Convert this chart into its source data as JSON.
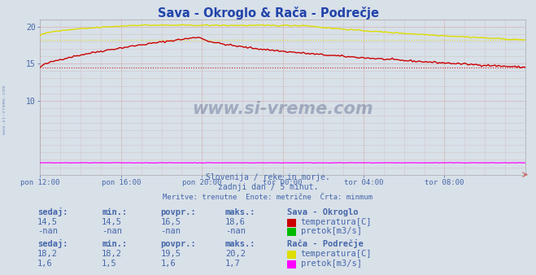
{
  "title": "Sava - Okroglo & Rača - Podrečje",
  "title_color": "#2244aa",
  "bg_color": "#d8e0e8",
  "plot_bg_color": "#d8e0e8",
  "grid_color_major": "#c8b8b8",
  "grid_color_minor": "#d0c8c8",
  "text_color": "#4466aa",
  "watermark_text": "www.si-vreme.com",
  "subtitle1": "Slovenija / reke in morje.",
  "subtitle2": "zadnji dan / 5 minut.",
  "subtitle3": "Meritve: trenutne  Enote: metrične  Črta: minmum",
  "xlim": [
    0,
    288
  ],
  "ylim": [
    0,
    21
  ],
  "yticks": [
    10,
    15,
    20
  ],
  "xtick_labels": [
    "pon 12:00",
    "pon 16:00",
    "pon 20:00",
    "tor 00:00",
    "tor 04:00",
    "tor 08:00"
  ],
  "xtick_positions": [
    0,
    48,
    96,
    144,
    192,
    240
  ],
  "sava_temp_color": "#cc0000",
  "raca_temp_color": "#dddd00",
  "raca_pretok_color": "#ff00ff",
  "sava_pretok_color": "#00bb00",
  "sava_temp_min": 14.5,
  "sava_temp_max": 18.6,
  "sava_temp_povpr": 16.5,
  "sava_temp_sedaj": 14.5,
  "raca_temp_min": 18.2,
  "raca_temp_max": 20.2,
  "raca_temp_povpr": 19.5,
  "raca_temp_sedaj": 18.2,
  "raca_pretok_min": 1.5,
  "raca_pretok_max": 1.7,
  "raca_pretok_povpr": 1.6,
  "raca_pretok_sedaj": 1.6,
  "header_row1": [
    "sedaj:",
    "min.:",
    "povpr.:",
    "maks.:",
    "Sava - Okroglo"
  ],
  "header_row2": [
    "sedaj:",
    "min.:",
    "povpr.:",
    "maks.:",
    "Rača - Podrečje"
  ],
  "sava_temp_vals": [
    "14,5",
    "14,5",
    "16,5",
    "18,6"
  ],
  "sava_pretok_vals": [
    "-nan",
    "-nan",
    "-nan",
    "-nan"
  ],
  "raca_temp_vals": [
    "18,2",
    "18,2",
    "19,5",
    "20,2"
  ],
  "raca_pretok_vals": [
    "1,6",
    "1,5",
    "1,6",
    "1,7"
  ],
  "legend_sava": [
    "temperatura[C]",
    "pretok[m3/s]"
  ],
  "legend_raca": [
    "temperatura[C]",
    "pretok[m3/s]"
  ]
}
